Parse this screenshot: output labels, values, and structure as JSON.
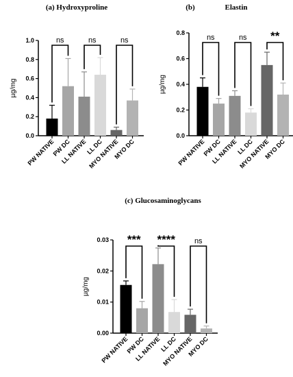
{
  "chart_data": [
    {
      "type": "bar",
      "title": "(a)  Hydroxyproline",
      "ylabel": "µg/mg",
      "ylim": [
        0,
        1.0
      ],
      "yticks": [
        "0.0",
        "0.2",
        "0.4",
        "0.6",
        "0.8",
        "1.0"
      ],
      "categories": [
        "PW NATIVE",
        "PW DC",
        "LL NATIVE",
        "LL DC",
        "MYO NATIVE",
        "MYO DC"
      ],
      "values": [
        0.18,
        0.52,
        0.41,
        0.64,
        0.06,
        0.37
      ],
      "errors": [
        0.14,
        0.29,
        0.26,
        0.18,
        0.03,
        0.12
      ],
      "colors": [
        "#000000",
        "#a6a6a6",
        "#8c8c8c",
        "#d9d9d9",
        "#666666",
        "#b3b3b3"
      ],
      "significance": [
        "ns",
        "ns",
        "ns"
      ],
      "grid": false
    },
    {
      "type": "bar",
      "title": "(b)",
      "subtitle": "Elastin",
      "ylabel": "µg/mg",
      "ylim": [
        0,
        0.8
      ],
      "yticks": [
        "0.0",
        "0.2",
        "0.4",
        "0.6",
        "0.8"
      ],
      "categories": [
        "PW NATIVE",
        "PW DC",
        "LL NATIVE",
        "LL DC",
        "MYO NATIVE",
        "MYO DC"
      ],
      "values": [
        0.38,
        0.25,
        0.31,
        0.18,
        0.55,
        0.32
      ],
      "errors": [
        0.07,
        0.04,
        0.04,
        0.03,
        0.1,
        0.09
      ],
      "colors": [
        "#000000",
        "#a6a6a6",
        "#8c8c8c",
        "#d9d9d9",
        "#666666",
        "#b3b3b3"
      ],
      "significance": [
        "ns",
        "ns",
        "**"
      ],
      "grid": false
    },
    {
      "type": "bar",
      "title": "(c)  Glucosaminoglycans",
      "ylabel": "µg/mg",
      "ylim": [
        0,
        0.03
      ],
      "yticks": [
        "0.00",
        "0.01",
        "0.02",
        "0.03"
      ],
      "categories": [
        "PW NATIVE",
        "PW DC",
        "LL NATIVE",
        "LL DC",
        "MYO NATIVE",
        "MYO DC"
      ],
      "values": [
        0.0155,
        0.008,
        0.0222,
        0.0068,
        0.0059,
        0.0015
      ],
      "errors": [
        0.0013,
        0.0022,
        0.0052,
        0.004,
        0.0018,
        0.0008
      ],
      "colors": [
        "#000000",
        "#a6a6a6",
        "#8c8c8c",
        "#d9d9d9",
        "#666666",
        "#b3b3b3"
      ],
      "significance": [
        "***",
        "****",
        "ns"
      ],
      "grid": false
    }
  ]
}
